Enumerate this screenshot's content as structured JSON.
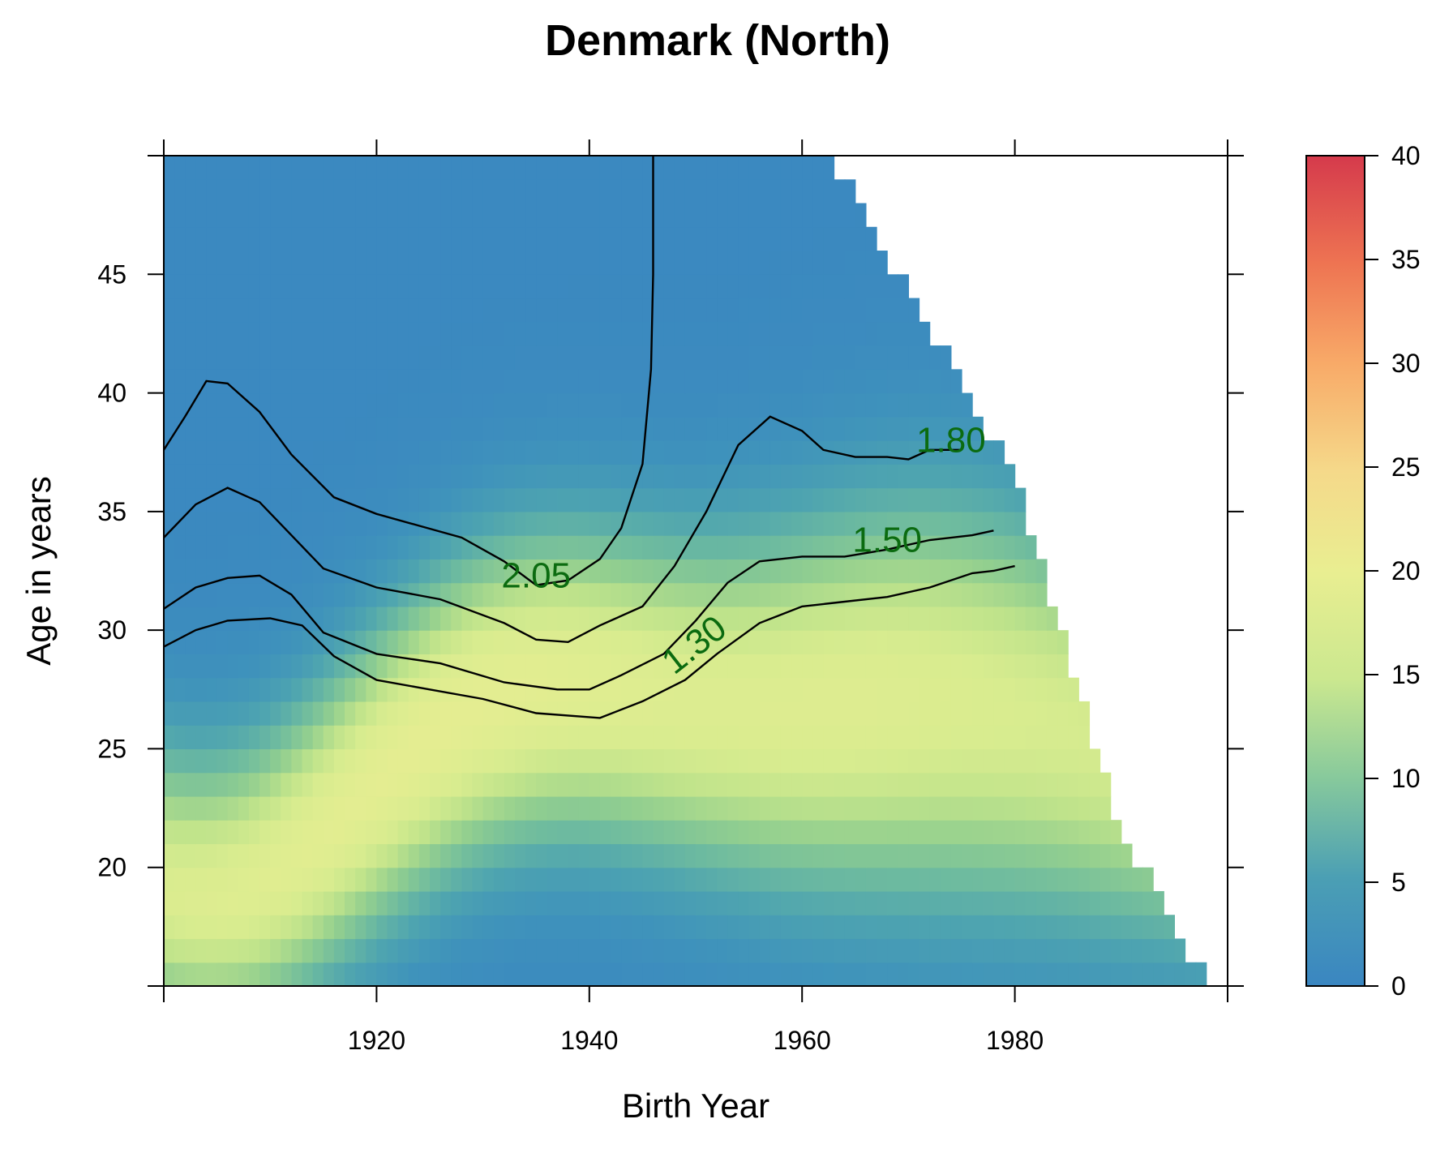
{
  "chart_data": {
    "type": "heatmap",
    "title": "Denmark (North)",
    "xlabel": "Birth Year",
    "ylabel": "Age in years",
    "xlim": [
      1900,
      2000
    ],
    "ylim": [
      15,
      50
    ],
    "x_ticks": [
      1920,
      1940,
      1960,
      1980
    ],
    "y_ticks": [
      20,
      25,
      30,
      35,
      40,
      45
    ],
    "colorbar": {
      "range": [
        0,
        40
      ],
      "ticks": [
        0,
        5,
        10,
        15,
        20,
        25,
        30,
        35,
        40
      ],
      "colors": [
        "#3a86c1",
        "#74c0a2",
        "#d9ee94",
        "#f5e18a",
        "#f8a866",
        "#d53a4c"
      ]
    },
    "data_region": {
      "max_age_by_birth_year": [
        [
          1962,
          50
        ],
        [
          1980,
          36
        ],
        [
          1990,
          21
        ],
        [
          1997.5,
          15
        ]
      ]
    },
    "contours": [
      {
        "level": "2.05",
        "label_position": [
          1935,
          32.2
        ],
        "points": [
          [
            1900,
            37.6
          ],
          [
            1902,
            39.0
          ],
          [
            1904,
            40.5
          ],
          [
            1906,
            40.4
          ],
          [
            1909,
            39.2
          ],
          [
            1912,
            37.4
          ],
          [
            1916,
            35.6
          ],
          [
            1920,
            34.9
          ],
          [
            1924,
            34.4
          ],
          [
            1928,
            33.9
          ],
          [
            1932,
            32.9
          ],
          [
            1935,
            31.9
          ],
          [
            1938,
            32.1
          ],
          [
            1941,
            33.0
          ],
          [
            1943,
            34.3
          ],
          [
            1945,
            37.0
          ],
          [
            1945.8,
            41.0
          ],
          [
            1946,
            45.0
          ],
          [
            1946,
            50.0
          ]
        ]
      },
      {
        "level": "1.80",
        "label_position": [
          1974,
          37.9
        ],
        "points": [
          [
            1900,
            33.9
          ],
          [
            1903,
            35.3
          ],
          [
            1906,
            36.0
          ],
          [
            1909,
            35.4
          ],
          [
            1912,
            34.0
          ],
          [
            1915,
            32.6
          ],
          [
            1920,
            31.8
          ],
          [
            1926,
            31.3
          ],
          [
            1932,
            30.3
          ],
          [
            1935,
            29.6
          ],
          [
            1938,
            29.5
          ],
          [
            1941,
            30.2
          ],
          [
            1945,
            31.0
          ],
          [
            1948,
            32.7
          ],
          [
            1951,
            35.0
          ],
          [
            1954,
            37.8
          ],
          [
            1957,
            39.0
          ],
          [
            1960,
            38.4
          ],
          [
            1962,
            37.6
          ],
          [
            1965,
            37.3
          ],
          [
            1968,
            37.3
          ],
          [
            1970,
            37.2
          ],
          [
            1972,
            37.6
          ],
          [
            1975,
            37.6
          ]
        ]
      },
      {
        "level": "1.50",
        "label_position": [
          1968,
          33.7
        ],
        "points": [
          [
            1900,
            30.9
          ],
          [
            1903,
            31.8
          ],
          [
            1906,
            32.2
          ],
          [
            1909,
            32.3
          ],
          [
            1912,
            31.5
          ],
          [
            1915,
            29.9
          ],
          [
            1920,
            29.0
          ],
          [
            1926,
            28.6
          ],
          [
            1932,
            27.8
          ],
          [
            1937,
            27.5
          ],
          [
            1940,
            27.5
          ],
          [
            1943,
            28.1
          ],
          [
            1947,
            29.0
          ],
          [
            1950,
            30.4
          ],
          [
            1953,
            32.0
          ],
          [
            1956,
            32.9
          ],
          [
            1960,
            33.1
          ],
          [
            1964,
            33.1
          ],
          [
            1968,
            33.4
          ],
          [
            1972,
            33.8
          ],
          [
            1976,
            34.0
          ],
          [
            1978,
            34.2
          ]
        ]
      },
      {
        "level": "1.30",
        "label_position": [
          1950,
          29.3
        ],
        "points": [
          [
            1900,
            29.3
          ],
          [
            1903,
            30.0
          ],
          [
            1906,
            30.4
          ],
          [
            1910,
            30.5
          ],
          [
            1913,
            30.2
          ],
          [
            1916,
            28.9
          ],
          [
            1920,
            27.9
          ],
          [
            1925,
            27.5
          ],
          [
            1930,
            27.1
          ],
          [
            1935,
            26.5
          ],
          [
            1941,
            26.3
          ],
          [
            1945,
            27.0
          ],
          [
            1949,
            27.9
          ],
          [
            1952,
            29.0
          ],
          [
            1956,
            30.3
          ],
          [
            1960,
            31.0
          ],
          [
            1964,
            31.2
          ],
          [
            1968,
            31.4
          ],
          [
            1972,
            31.8
          ],
          [
            1976,
            32.4
          ],
          [
            1978,
            32.5
          ],
          [
            1980,
            32.7
          ]
        ]
      }
    ]
  }
}
